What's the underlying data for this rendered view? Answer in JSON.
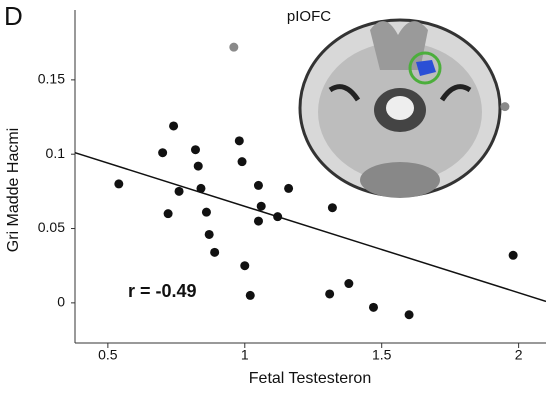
{
  "chart_data": {
    "type": "scatter",
    "panel_label": "D",
    "image_label": "pIOFC",
    "annotation": "r = -0.49",
    "x_label": "Fetal Testesteron",
    "y_label": "Gri Madde Hacmi",
    "xlim": [
      0.38,
      2.1
    ],
    "ylim": [
      -0.027,
      0.197
    ],
    "xticks": [
      0.5,
      1,
      1.5,
      2
    ],
    "yticks": [
      0,
      0.05,
      0.1,
      0.15
    ],
    "series": [
      {
        "color": "#111111",
        "x": [
          0.54,
          0.74,
          0.7,
          0.76,
          0.72,
          0.82,
          0.83,
          0.84,
          0.86,
          0.87,
          0.89,
          0.98,
          0.99,
          1.05,
          1.06,
          1.05,
          1.0,
          1.02,
          1.12,
          1.16,
          1.32,
          1.31,
          1.38,
          1.47,
          1.6,
          1.98
        ],
        "values": [
          0.08,
          0.119,
          0.101,
          0.075,
          0.06,
          0.103,
          0.092,
          0.077,
          0.061,
          0.046,
          0.034,
          0.109,
          0.095,
          0.079,
          0.065,
          0.055,
          0.025,
          0.005,
          0.058,
          0.077,
          0.064,
          0.006,
          0.013,
          -0.003,
          -0.008,
          0.032
        ]
      },
      {
        "color": "#8a8a8a",
        "x": [
          0.96,
          1.95
        ],
        "values": [
          0.172,
          0.132
        ]
      }
    ],
    "trend_line": {
      "color": "#111111",
      "x": [
        0.38,
        2.1
      ],
      "values": [
        0.101,
        0.001
      ]
    }
  }
}
